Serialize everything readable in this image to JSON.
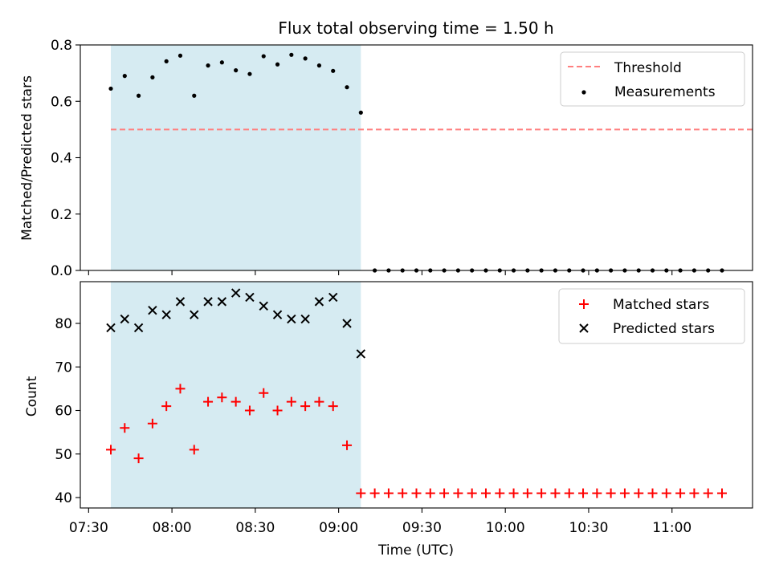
{
  "chart_data": [
    {
      "type": "scatter",
      "title": "Flux total observing time = 1.50 h",
      "xlabel": "",
      "ylabel": "Matched/Predicted stars",
      "ylim": [
        0,
        0.8
      ],
      "yticks": [
        "0.0",
        "0.2",
        "0.4",
        "0.6",
        "0.8"
      ],
      "x_axis": "time UTC",
      "shaded_interval": [
        "07:38",
        "09:08"
      ],
      "grid": false,
      "legend_position": "upper right",
      "threshold": {
        "name": "Threshold",
        "value": 0.5,
        "x_start": "07:38",
        "x_end": "11:30",
        "color": "#ff7f7f",
        "style": "dashed"
      },
      "series": [
        {
          "name": "Measurements",
          "marker": "dot",
          "color": "#000000",
          "x": [
            "07:38",
            "07:43",
            "07:48",
            "07:53",
            "07:58",
            "08:03",
            "08:08",
            "08:13",
            "08:18",
            "08:23",
            "08:28",
            "08:33",
            "08:38",
            "08:43",
            "08:48",
            "08:53",
            "08:58",
            "09:03",
            "09:08",
            "09:13",
            "09:18",
            "09:23",
            "09:28",
            "09:33",
            "09:38",
            "09:43",
            "09:48",
            "09:53",
            "09:58",
            "10:03",
            "10:08",
            "10:13",
            "10:18",
            "10:23",
            "10:28",
            "10:33",
            "10:38",
            "10:43",
            "10:48",
            "10:53",
            "10:58",
            "11:03",
            "11:08",
            "11:13",
            "11:18"
          ],
          "y": [
            0.645,
            0.69,
            0.62,
            0.685,
            0.742,
            0.762,
            0.62,
            0.727,
            0.738,
            0.71,
            0.697,
            0.76,
            0.731,
            0.765,
            0.752,
            0.727,
            0.708,
            0.65,
            0.56,
            0,
            0,
            0,
            0,
            0,
            0,
            0,
            0,
            0,
            0,
            0,
            0,
            0,
            0,
            0,
            0,
            0,
            0,
            0,
            0,
            0,
            0,
            0,
            0,
            0,
            0
          ]
        }
      ]
    },
    {
      "type": "scatter",
      "title": "",
      "xlabel": "Time (UTC)",
      "ylabel": "Count",
      "ylim": [
        39,
        88.5
      ],
      "yticks": [
        "40",
        "50",
        "60",
        "70",
        "80"
      ],
      "xticks": [
        "07:30",
        "08:00",
        "08:30",
        "09:00",
        "09:30",
        "10:00",
        "10:30",
        "11:00"
      ],
      "shaded_interval": [
        "07:38",
        "09:08"
      ],
      "grid": false,
      "legend_position": "upper right",
      "series": [
        {
          "name": "Matched stars",
          "marker": "plus",
          "color": "#ff0000",
          "x": [
            "07:38",
            "07:43",
            "07:48",
            "07:53",
            "07:58",
            "08:03",
            "08:08",
            "08:13",
            "08:18",
            "08:23",
            "08:28",
            "08:33",
            "08:38",
            "08:43",
            "08:48",
            "08:53",
            "08:58",
            "09:03",
            "09:08",
            "09:13",
            "09:18",
            "09:23",
            "09:28",
            "09:33",
            "09:38",
            "09:43",
            "09:48",
            "09:53",
            "09:58",
            "10:03",
            "10:08",
            "10:13",
            "10:18",
            "10:23",
            "10:28",
            "10:33",
            "10:38",
            "10:43",
            "10:48",
            "10:53",
            "10:58",
            "11:03",
            "11:08",
            "11:13",
            "11:18"
          ],
          "y": [
            51,
            56,
            49,
            57,
            61,
            65,
            51,
            62,
            63,
            62,
            60,
            64,
            60,
            62,
            61,
            62,
            61,
            52,
            41,
            41,
            41,
            41,
            41,
            41,
            41,
            41,
            41,
            41,
            41,
            41,
            41,
            41,
            41,
            41,
            41,
            41,
            41,
            41,
            41,
            41,
            41,
            41,
            41,
            41,
            41
          ]
        },
        {
          "name": "Predicted stars",
          "marker": "x",
          "color": "#000000",
          "x": [
            "07:38",
            "07:43",
            "07:48",
            "07:53",
            "07:58",
            "08:03",
            "08:08",
            "08:13",
            "08:18",
            "08:23",
            "08:28",
            "08:33",
            "08:38",
            "08:43",
            "08:48",
            "08:53",
            "08:58",
            "09:03",
            "09:08"
          ],
          "y": [
            79,
            81,
            79,
            83,
            82,
            85,
            82,
            85,
            85,
            87,
            86,
            84,
            82,
            81,
            81,
            85,
            86,
            80,
            73
          ]
        }
      ]
    }
  ]
}
